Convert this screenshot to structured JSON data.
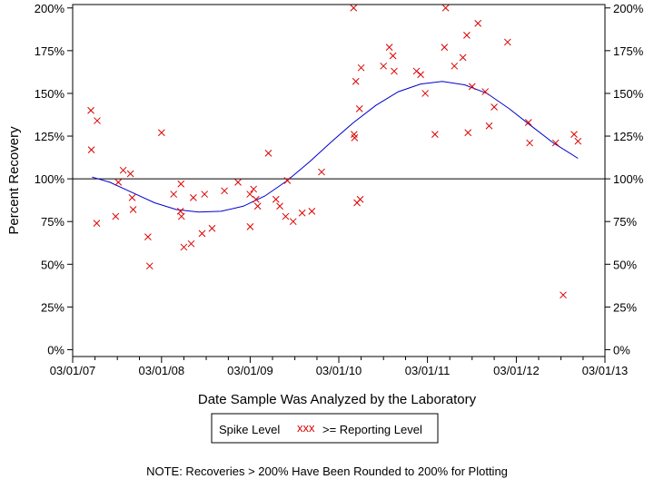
{
  "chart_data": {
    "type": "scatter",
    "title": "",
    "xlabel": "Date Sample Was Analyzed by the Laboratory",
    "ylabel": "Percent Recovery",
    "x_tick_labels": [
      "03/01/07",
      "03/01/08",
      "03/01/09",
      "03/01/10",
      "03/01/11",
      "03/01/12",
      "03/01/13"
    ],
    "x_range": [
      "2007-03-01",
      "2013-03-01"
    ],
    "y_tick_values": [
      0,
      25,
      50,
      75,
      100,
      125,
      150,
      175,
      200
    ],
    "y_tick_labels": [
      "0%",
      "25%",
      "50%",
      "75%",
      "100%",
      "125%",
      "150%",
      "175%",
      "200%"
    ],
    "ylim": [
      -4,
      202
    ],
    "reference_line": 100,
    "grid": false,
    "legend": {
      "placement": "bottom",
      "spike_label": "Spike Level",
      "marker_glyphs": "xxx",
      "series_label": ">= Reporting Level"
    },
    "note": "NOTE: Recoveries > 200% Have Been Rounded to 200% for Plotting",
    "colors": {
      "points": "#dd0000",
      "trend": "#0000cc",
      "reference": "#000000",
      "frame": "#000000"
    },
    "series": [
      {
        "name": ">= Reporting Level",
        "points": [
          {
            "x": "2007-05-15",
            "y": 140
          },
          {
            "x": "2007-05-17",
            "y": 117
          },
          {
            "x": "2007-06-10",
            "y": 134
          },
          {
            "x": "2007-06-08",
            "y": 74
          },
          {
            "x": "2007-08-25",
            "y": 78
          },
          {
            "x": "2007-09-05",
            "y": 98
          },
          {
            "x": "2007-09-25",
            "y": 105
          },
          {
            "x": "2007-10-25",
            "y": 103
          },
          {
            "x": "2007-11-01",
            "y": 89
          },
          {
            "x": "2007-11-05",
            "y": 82
          },
          {
            "x": "2008-01-05",
            "y": 66
          },
          {
            "x": "2008-01-12",
            "y": 49
          },
          {
            "x": "2008-03-01",
            "y": 127
          },
          {
            "x": "2008-04-20",
            "y": 91
          },
          {
            "x": "2008-05-18",
            "y": 81
          },
          {
            "x": "2008-05-20",
            "y": 97
          },
          {
            "x": "2008-05-22",
            "y": 78
          },
          {
            "x": "2008-06-01",
            "y": 60
          },
          {
            "x": "2008-07-01",
            "y": 62
          },
          {
            "x": "2008-07-10",
            "y": 89
          },
          {
            "x": "2008-08-15",
            "y": 68
          },
          {
            "x": "2008-08-25",
            "y": 91
          },
          {
            "x": "2008-09-25",
            "y": 71
          },
          {
            "x": "2008-11-15",
            "y": 93
          },
          {
            "x": "2009-01-10",
            "y": 98
          },
          {
            "x": "2009-02-28",
            "y": 91
          },
          {
            "x": "2009-03-01",
            "y": 72
          },
          {
            "x": "2009-03-15",
            "y": 94
          },
          {
            "x": "2009-03-25",
            "y": 88
          },
          {
            "x": "2009-04-01",
            "y": 84
          },
          {
            "x": "2009-05-15",
            "y": 115
          },
          {
            "x": "2009-06-15",
            "y": 88
          },
          {
            "x": "2009-07-01",
            "y": 84
          },
          {
            "x": "2009-07-25",
            "y": 78
          },
          {
            "x": "2009-08-01",
            "y": 99
          },
          {
            "x": "2009-08-25",
            "y": 75
          },
          {
            "x": "2009-10-01",
            "y": 80
          },
          {
            "x": "2009-11-10",
            "y": 81
          },
          {
            "x": "2009-12-20",
            "y": 104
          },
          {
            "x": "2010-05-01",
            "y": 200
          },
          {
            "x": "2010-05-03",
            "y": 126
          },
          {
            "x": "2010-05-05",
            "y": 124
          },
          {
            "x": "2010-05-10",
            "y": 157
          },
          {
            "x": "2010-05-15",
            "y": 86
          },
          {
            "x": "2010-05-25",
            "y": 141
          },
          {
            "x": "2010-05-28",
            "y": 88
          },
          {
            "x": "2010-06-01",
            "y": 165
          },
          {
            "x": "2010-09-01",
            "y": 166
          },
          {
            "x": "2010-09-25",
            "y": 177
          },
          {
            "x": "2010-10-10",
            "y": 172
          },
          {
            "x": "2010-10-15",
            "y": 163
          },
          {
            "x": "2011-01-15",
            "y": 163
          },
          {
            "x": "2011-02-01",
            "y": 161
          },
          {
            "x": "2011-02-20",
            "y": 150
          },
          {
            "x": "2011-04-01",
            "y": 126
          },
          {
            "x": "2011-05-10",
            "y": 177
          },
          {
            "x": "2011-05-15",
            "y": 200
          },
          {
            "x": "2011-06-20",
            "y": 166
          },
          {
            "x": "2011-07-25",
            "y": 171
          },
          {
            "x": "2011-08-10",
            "y": 184
          },
          {
            "x": "2011-08-15",
            "y": 127
          },
          {
            "x": "2011-09-01",
            "y": 154
          },
          {
            "x": "2011-09-25",
            "y": 191
          },
          {
            "x": "2011-10-25",
            "y": 151
          },
          {
            "x": "2011-11-10",
            "y": 131
          },
          {
            "x": "2011-12-01",
            "y": 142
          },
          {
            "x": "2012-01-25",
            "y": 180
          },
          {
            "x": "2012-04-20",
            "y": 133
          },
          {
            "x": "2012-04-25",
            "y": 121
          },
          {
            "x": "2012-08-10",
            "y": 121
          },
          {
            "x": "2012-09-10",
            "y": 32
          },
          {
            "x": "2012-10-25",
            "y": 126
          },
          {
            "x": "2012-11-10",
            "y": 122
          }
        ]
      }
    ],
    "trend_line": {
      "points": [
        {
          "x": "2007-05-20",
          "y": 101
        },
        {
          "x": "2007-08-01",
          "y": 98
        },
        {
          "x": "2007-11-01",
          "y": 92
        },
        {
          "x": "2008-02-01",
          "y": 86
        },
        {
          "x": "2008-05-01",
          "y": 82
        },
        {
          "x": "2008-08-01",
          "y": 80.5
        },
        {
          "x": "2008-11-01",
          "y": 81
        },
        {
          "x": "2009-02-01",
          "y": 84
        },
        {
          "x": "2009-05-01",
          "y": 90
        },
        {
          "x": "2009-08-01",
          "y": 99
        },
        {
          "x": "2009-11-01",
          "y": 110
        },
        {
          "x": "2010-02-01",
          "y": 122
        },
        {
          "x": "2010-05-01",
          "y": 133
        },
        {
          "x": "2010-08-01",
          "y": 143
        },
        {
          "x": "2010-11-01",
          "y": 151
        },
        {
          "x": "2011-02-01",
          "y": 155.5
        },
        {
          "x": "2011-05-01",
          "y": 157
        },
        {
          "x": "2011-08-01",
          "y": 155
        },
        {
          "x": "2011-11-01",
          "y": 150
        },
        {
          "x": "2012-02-01",
          "y": 141
        },
        {
          "x": "2012-05-01",
          "y": 131
        },
        {
          "x": "2012-08-01",
          "y": 121
        },
        {
          "x": "2012-11-10",
          "y": 112
        }
      ]
    }
  }
}
